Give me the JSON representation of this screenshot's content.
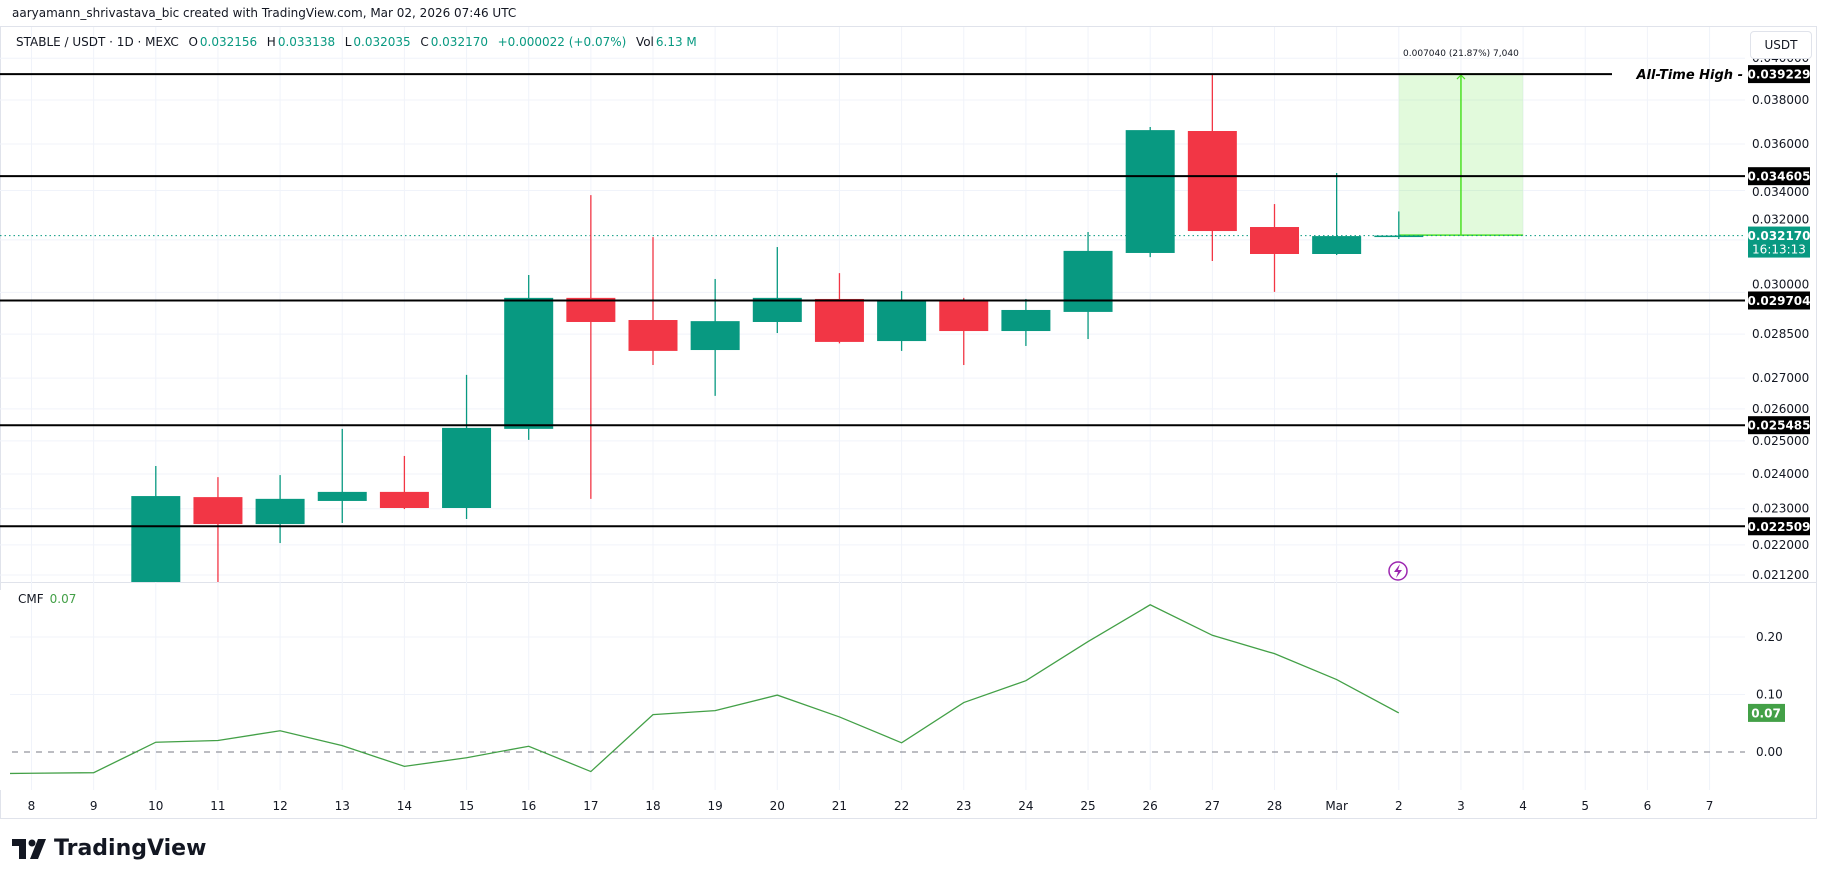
{
  "attribution": "aaryamann_shrivastava_bic created with TradingView.com, Mar 02, 2026 07:46 UTC",
  "legend": {
    "symbol": "STABLE / USDT · 1D · MEXC",
    "o_label": "O",
    "o": "0.032156",
    "h_label": "H",
    "h": "0.033138",
    "l_label": "L",
    "l": "0.032035",
    "c_label": "C",
    "c": "0.032170",
    "change": "+0.000022 (+0.07%)",
    "vol_label": "Vol",
    "vol": "6.13 M"
  },
  "currency_button": "USDT",
  "logo_text": "TradingView",
  "colors": {
    "up": "#089981",
    "down": "#F23645",
    "cmf": "#43A047",
    "measure": "#4CE024",
    "level": "#000000",
    "alert_icon": "#9C27B0"
  },
  "chart_data": [
    {
      "type": "candlestick",
      "yscale": "log",
      "ylim": [
        0.021,
        0.0405
      ],
      "grid": true,
      "x_tick_labels": [
        "8",
        "9",
        "10",
        "11",
        "12",
        "13",
        "14",
        "15",
        "16",
        "17",
        "18",
        "19",
        "20",
        "21",
        "22",
        "23",
        "24",
        "25",
        "26",
        "27",
        "28",
        "Mar",
        "2",
        "3",
        "4",
        "5",
        "6",
        "7"
      ],
      "dates": [
        "Feb 10",
        "Feb 11",
        "Feb 12",
        "Feb 13",
        "Feb 14",
        "Feb 15",
        "Feb 16",
        "Feb 17",
        "Feb 18",
        "Feb 19",
        "Feb 20",
        "Feb 21",
        "Feb 22",
        "Feb 23",
        "Feb 24",
        "Feb 25",
        "Feb 26",
        "Feb 27",
        "Feb 28",
        "Mar 1",
        "Mar 2"
      ],
      "open": [
        0.021,
        0.02333,
        0.02257,
        0.02322,
        0.02348,
        0.02302,
        0.02537,
        0.0298,
        0.029,
        0.02795,
        0.02893,
        0.02976,
        0.02826,
        0.02969,
        0.02861,
        0.02929,
        0.03149,
        0.03658,
        0.03251,
        0.03145,
        0.032156
      ],
      "high": [
        0.02424,
        0.02391,
        0.02397,
        0.02537,
        0.02454,
        0.02711,
        0.03065,
        0.03381,
        0.03211,
        0.0305,
        0.03172,
        0.03072,
        0.03005,
        0.0298,
        0.02976,
        0.03231,
        0.03676,
        0.039229,
        0.03344,
        0.03474,
        0.033138
      ],
      "low": [
        0.0205,
        0.0206,
        0.02205,
        0.0226,
        0.02299,
        0.02271,
        0.02503,
        0.02328,
        0.02744,
        0.02642,
        0.02854,
        0.02818,
        0.02792,
        0.02744,
        0.02809,
        0.02833,
        0.03133,
        0.03118,
        0.03002,
        0.03141,
        0.032035
      ],
      "close": [
        0.02336,
        0.02257,
        0.02328,
        0.02348,
        0.02302,
        0.0254,
        0.0298,
        0.02893,
        0.02792,
        0.02896,
        0.0298,
        0.02823,
        0.02969,
        0.02861,
        0.02936,
        0.03157,
        0.03662,
        0.03235,
        0.03145,
        0.03215,
        0.03217
      ],
      "y_ticks": [
        0.04,
        0.038,
        0.036,
        0.034,
        0.032,
        0.03,
        0.0285,
        0.027,
        0.026,
        0.025,
        0.024,
        0.023,
        0.022,
        0.0212
      ],
      "y_tick_labels": [
        "0.040000",
        "0.038000",
        "0.036000",
        "0.034000",
        "0.032000",
        "0.030000",
        "0.028500",
        "0.027000",
        "0.026000",
        "0.025000",
        "0.024000",
        "0.023000",
        "0.022000",
        "0.021200"
      ],
      "levels": [
        {
          "value": 0.039229,
          "label": "0.039229",
          "annotation": "All-Time High -"
        },
        {
          "value": 0.034605,
          "label": "0.034605"
        },
        {
          "value": 0.029704,
          "label": "0.029704"
        },
        {
          "value": 0.025485,
          "label": "0.025485"
        },
        {
          "value": 0.022509,
          "label": "0.022509"
        }
      ],
      "last_price": {
        "value": 0.03217,
        "label": "0.032170",
        "countdown": "16:13:13"
      },
      "measure": {
        "from": 0.032189,
        "to": 0.039229,
        "start_date": "Mar 2",
        "end_date": "Mar 4",
        "label": "0.007040 (21.87%) 7,040"
      }
    },
    {
      "type": "line",
      "name": "CMF",
      "current_label": "0.07",
      "ylim": [
        -0.07,
        0.29
      ],
      "y_ticks": [
        0.2,
        0.1,
        0.0
      ],
      "y_tick_labels": [
        "0.20",
        "0.10",
        "0.00"
      ],
      "x": [
        "Feb 7",
        "Feb 8",
        "Feb 9",
        "Feb 10",
        "Feb 11",
        "Feb 12",
        "Feb 13",
        "Feb 14",
        "Feb 15",
        "Feb 16",
        "Feb 17",
        "Feb 18",
        "Feb 19",
        "Feb 20",
        "Feb 21",
        "Feb 22",
        "Feb 23",
        "Feb 24",
        "Feb 25",
        "Feb 26",
        "Feb 27",
        "Feb 28",
        "Mar 1",
        "Mar 2"
      ],
      "values": [
        -0.038,
        -0.037,
        -0.036,
        0.017,
        0.02,
        0.037,
        0.011,
        -0.025,
        -0.01,
        0.01,
        -0.034,
        0.065,
        0.072,
        0.099,
        0.061,
        0.016,
        0.086,
        0.124,
        0.192,
        0.256,
        0.203,
        0.171,
        0.126,
        0.068
      ]
    }
  ]
}
